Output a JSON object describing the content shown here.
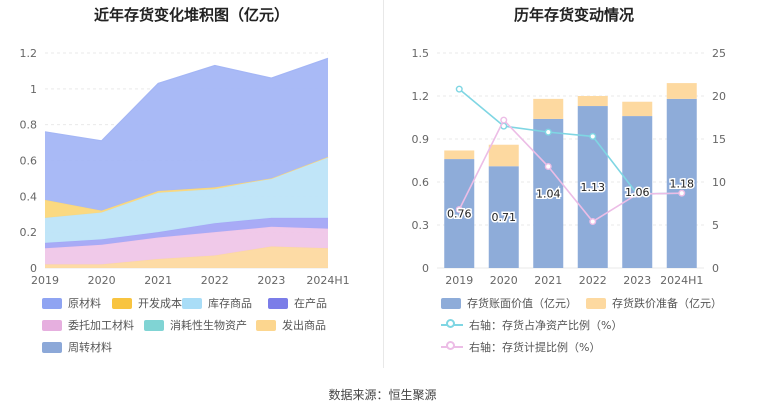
{
  "titles": {
    "left": "近年存货变化堆积图（亿元）",
    "right": "历年存货变动情况"
  },
  "source": "数据来源：恒生聚源",
  "chart_data": [
    {
      "type": "area",
      "stacked": true,
      "categories": [
        "2019",
        "2020",
        "2021",
        "2022",
        "2023",
        "2024H1"
      ],
      "ylim": [
        0,
        1.2
      ],
      "yticks": [
        "0",
        "0.2",
        "0.4",
        "0.6",
        "0.8",
        "1",
        "1.2"
      ],
      "series": [
        {
          "name": "发出商品",
          "color": "#fdd9a0",
          "values": [
            0.02,
            0.02,
            0.05,
            0.07,
            0.12,
            0.11
          ]
        },
        {
          "name": "委托加工材料",
          "color": "#efc6e8",
          "values": [
            0.09,
            0.11,
            0.12,
            0.13,
            0.11,
            0.11
          ]
        },
        {
          "name": "在产品",
          "color": "#a3a6f5",
          "values": [
            0.03,
            0.03,
            0.03,
            0.05,
            0.05,
            0.06
          ]
        },
        {
          "name": "库存商品",
          "color": "#bde4f8",
          "values": [
            0.14,
            0.15,
            0.22,
            0.19,
            0.22,
            0.34
          ]
        },
        {
          "name": "开发成本",
          "color": "#fbd77a",
          "values": [
            0.1,
            0.01,
            0.01,
            0.01,
            0.0,
            0.0
          ]
        },
        {
          "name": "原材料",
          "color": "#a4b6f5",
          "values": [
            0.38,
            0.39,
            0.6,
            0.68,
            0.56,
            0.55
          ]
        }
      ],
      "legend": [
        {
          "name": "原材料",
          "color": "#8fa4f2"
        },
        {
          "name": "开发成本",
          "color": "#f8c440"
        },
        {
          "name": "库存商品",
          "color": "#a9ddf7"
        },
        {
          "name": "在产品",
          "color": "#7b7de8"
        },
        {
          "name": "委托加工材料",
          "color": "#e6afdf"
        },
        {
          "name": "消耗性生物资产",
          "color": "#80d4d4"
        },
        {
          "name": "发出商品",
          "color": "#fcd68f"
        },
        {
          "name": "周转材料",
          "color": "#8ca8d8"
        }
      ]
    },
    {
      "type": "bar",
      "stacked": true,
      "categories": [
        "2019",
        "2020",
        "2021",
        "2022",
        "2023",
        "2024H1"
      ],
      "ylim": [
        0,
        1.5
      ],
      "yticks": [
        "0",
        "0.3",
        "0.6",
        "0.9",
        "1.2",
        "1.5"
      ],
      "y2lim": [
        0,
        25
      ],
      "y2ticks": [
        "0",
        "5",
        "10",
        "15",
        "20",
        "25"
      ],
      "series": [
        {
          "name": "存货账面价值（亿元）",
          "color": "#8eacd9",
          "values": [
            0.76,
            0.71,
            1.04,
            1.13,
            1.06,
            1.18
          ],
          "labels": [
            "0.76",
            "0.71",
            "1.04",
            "1.13",
            "1.06",
            "1.18"
          ]
        },
        {
          "name": "存货跌价准备（亿元）",
          "color": "#fdd9a0",
          "values": [
            0.06,
            0.15,
            0.14,
            0.07,
            0.1,
            0.11
          ]
        }
      ],
      "line_series": [
        {
          "name": "右轴：存货占净资产比例（%）",
          "color": "#7fd6e3",
          "values": [
            20.8,
            16.5,
            15.8,
            15.3,
            8.6,
            8.7
          ]
        },
        {
          "name": "右轴：存货计提比例（%）",
          "color": "#ecbde6",
          "values": [
            6.8,
            17.2,
            11.8,
            5.4,
            8.6,
            8.7
          ]
        }
      ]
    }
  ]
}
